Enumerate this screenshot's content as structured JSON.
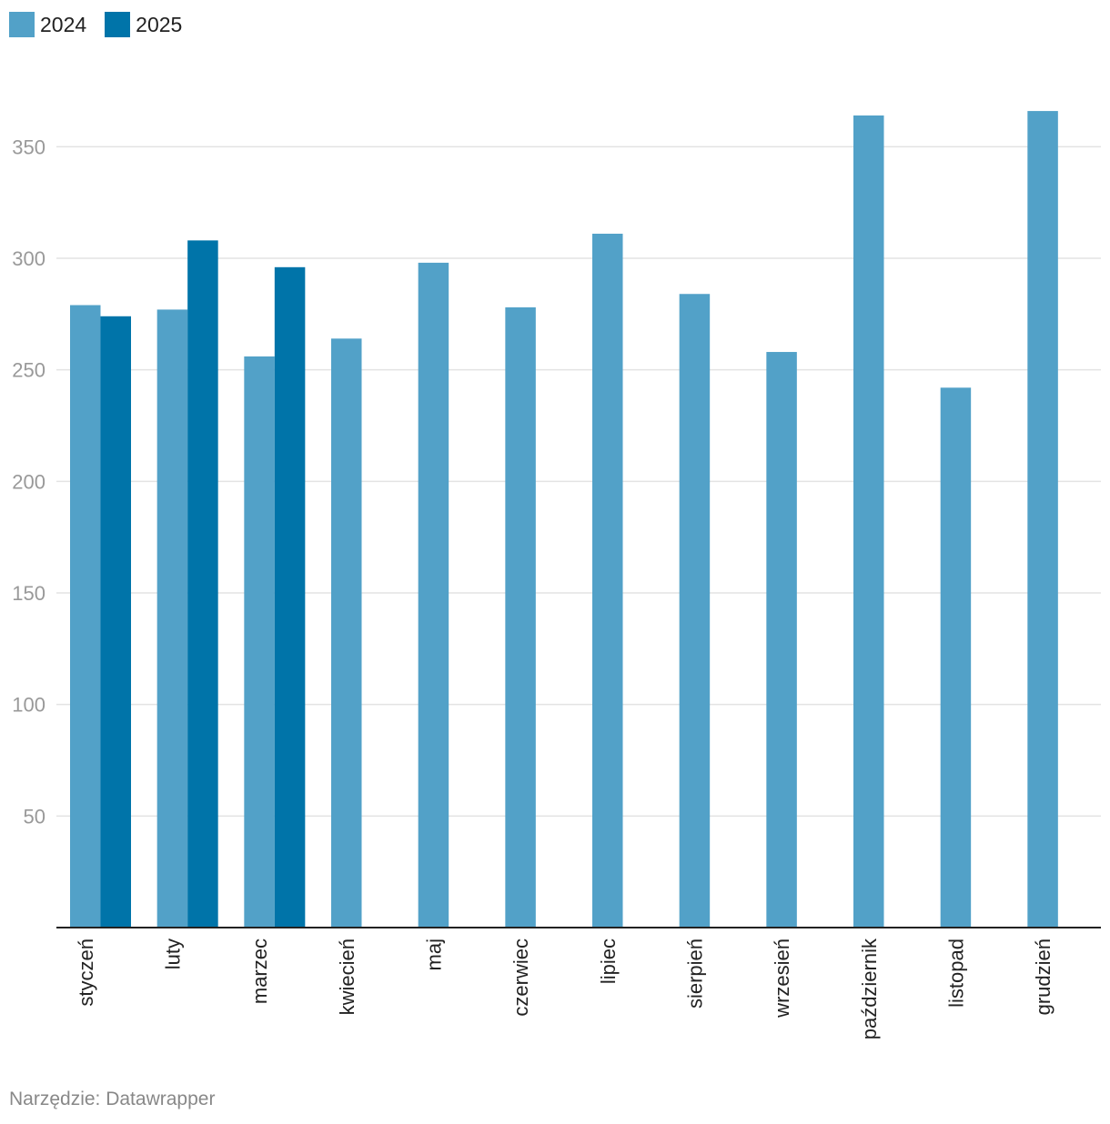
{
  "chart_data": {
    "type": "bar",
    "categories": [
      "styczeń",
      "luty",
      "marzec",
      "kwiecień",
      "maj",
      "czerwiec",
      "lipiec",
      "sierpień",
      "wrzesień",
      "październik",
      "listopad",
      "grudzień"
    ],
    "series": [
      {
        "name": "2024",
        "color": "#52a1c8",
        "values": [
          279,
          277,
          256,
          264,
          298,
          278,
          311,
          284,
          258,
          364,
          242,
          366
        ]
      },
      {
        "name": "2025",
        "color": "#0074a9",
        "values": [
          274,
          308,
          296,
          null,
          null,
          null,
          null,
          null,
          null,
          null,
          null,
          null
        ]
      }
    ],
    "yticks": [
      50,
      100,
      150,
      200,
      250,
      300,
      350
    ],
    "ylim": [
      0,
      375
    ],
    "grid": true,
    "legend_position": "top-left",
    "xlabel": "",
    "ylabel": ""
  },
  "footer": {
    "source": "Narzędzie: Datawrapper"
  }
}
